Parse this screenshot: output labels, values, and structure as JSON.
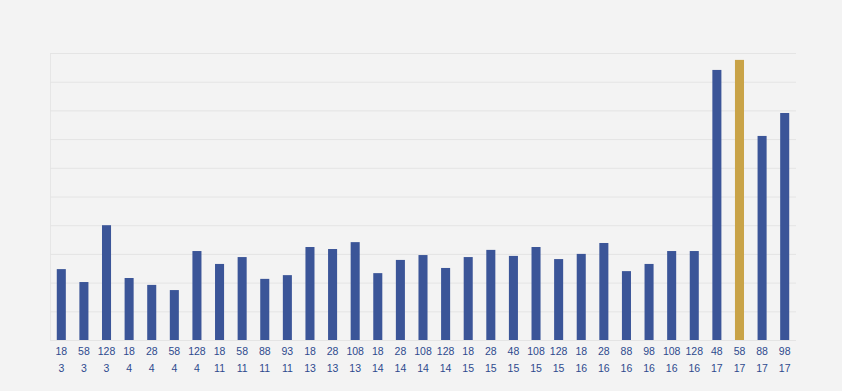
{
  "chart_data": {
    "type": "bar",
    "categories": [
      [
        "18",
        "3"
      ],
      [
        "58",
        "3"
      ],
      [
        "128",
        "3"
      ],
      [
        "18",
        "4"
      ],
      [
        "28",
        "4"
      ],
      [
        "58",
        "4"
      ],
      [
        "128",
        "4"
      ],
      [
        "18",
        "11"
      ],
      [
        "58",
        "11"
      ],
      [
        "88",
        "11"
      ],
      [
        "93",
        "11"
      ],
      [
        "18",
        "13"
      ],
      [
        "28",
        "13"
      ],
      [
        "108",
        "13"
      ],
      [
        "18",
        "14"
      ],
      [
        "28",
        "14"
      ],
      [
        "108",
        "14"
      ],
      [
        "128",
        "14"
      ],
      [
        "18",
        "15"
      ],
      [
        "28",
        "15"
      ],
      [
        "48",
        "15"
      ],
      [
        "108",
        "15"
      ],
      [
        "128",
        "15"
      ],
      [
        "18",
        "16"
      ],
      [
        "28",
        "16"
      ],
      [
        "88",
        "16"
      ],
      [
        "98",
        "16"
      ],
      [
        "108",
        "16"
      ],
      [
        "128",
        "16"
      ],
      [
        "48",
        "17"
      ],
      [
        "58",
        "17"
      ],
      [
        "88",
        "17"
      ],
      [
        "98",
        "17"
      ]
    ],
    "values": [
      2.47,
      2.02,
      4.0,
      2.16,
      1.92,
      1.74,
      3.1,
      2.65,
      2.89,
      2.13,
      2.26,
      3.24,
      3.17,
      3.41,
      2.33,
      2.79,
      2.96,
      2.51,
      2.89,
      3.14,
      2.93,
      3.24,
      2.82,
      3.0,
      3.38,
      2.4,
      2.65,
      3.1,
      3.1,
      9.41,
      9.76,
      7.11,
      7.91
    ],
    "colors": [
      "#3b5598",
      "#3b5598",
      "#3b5598",
      "#3b5598",
      "#3b5598",
      "#3b5598",
      "#3b5598",
      "#3b5598",
      "#3b5598",
      "#3b5598",
      "#3b5598",
      "#3b5598",
      "#3b5598",
      "#3b5598",
      "#3b5598",
      "#3b5598",
      "#3b5598",
      "#3b5598",
      "#3b5598",
      "#3b5598",
      "#3b5598",
      "#3b5598",
      "#3b5598",
      "#3b5598",
      "#3b5598",
      "#3b5598",
      "#3b5598",
      "#3b5598",
      "#3b5598",
      "#3b5598",
      "#c9a347",
      "#3b5598",
      "#3b5598"
    ],
    "ylim": [
      0,
      10
    ],
    "yticks": [
      0,
      1,
      2,
      3,
      4,
      5,
      6,
      7,
      8,
      9,
      10
    ],
    "grid": true,
    "tick_labels": "x"
  }
}
